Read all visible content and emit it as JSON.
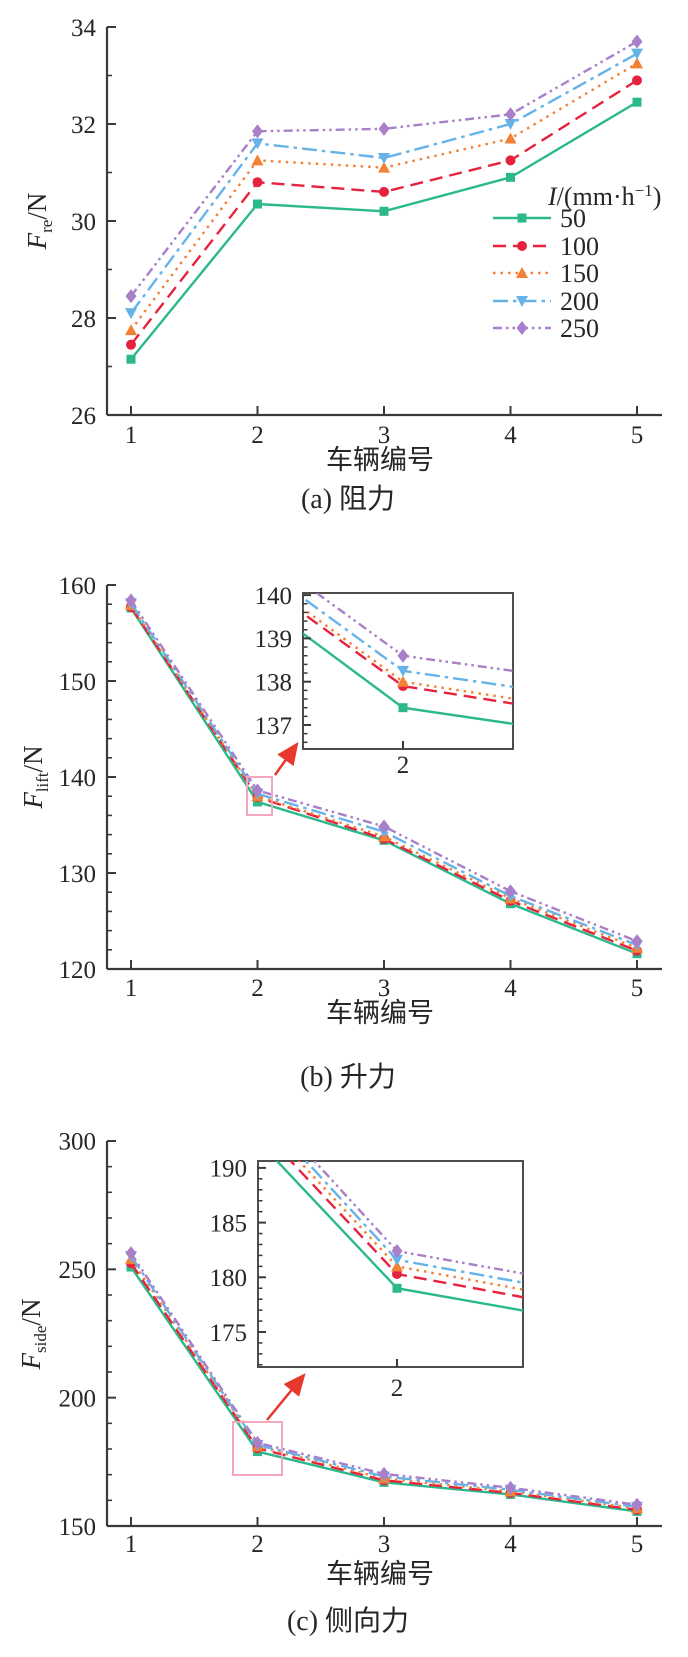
{
  "page": {
    "background": "#ffffff"
  },
  "colors": {
    "axis": "#3a3a3a",
    "text": "#262626",
    "zoom_box": "#f4a7bb",
    "arrow": "#e8372c"
  },
  "series_styles": [
    {
      "label": "50",
      "color": "#2bb98c",
      "marker": "square",
      "line": "solid"
    },
    {
      "label": "100",
      "color": "#e6233f",
      "marker": "circle",
      "line": "dashed"
    },
    {
      "label": "150",
      "color": "#f28133",
      "marker": "triangle-up",
      "line": "dotted"
    },
    {
      "label": "200",
      "color": "#66b3e8",
      "marker": "triangle-down",
      "line": "dash-dot"
    },
    {
      "label": "250",
      "color": "#a97fc9",
      "marker": "diamond",
      "line": "dash-dot-dot"
    }
  ],
  "legend": {
    "title_italic": "I",
    "title_mid": "/(mm·h",
    "title_sup": "−1",
    "title_end": ")"
  },
  "chart_data": [
    {
      "id": "a",
      "type": "line",
      "caption": "(a) 阻力",
      "xlabel": "车辆编号",
      "ylabel_base": "F",
      "ylabel_sub": "re",
      "ylabel_rest": "/N",
      "x": [
        1,
        2,
        3,
        4,
        5
      ],
      "xticks": [
        "1",
        "2",
        "3",
        "4",
        "5"
      ],
      "ylim": [
        26,
        34
      ],
      "yticks": [
        26,
        28,
        30,
        32,
        34
      ],
      "yminor_step": 1,
      "grid": false,
      "legend_position": "right-middle",
      "series": [
        {
          "name": "50",
          "values": [
            27.15,
            30.35,
            30.2,
            30.9,
            32.45
          ]
        },
        {
          "name": "100",
          "values": [
            27.45,
            30.8,
            30.6,
            31.25,
            32.9
          ]
        },
        {
          "name": "150",
          "values": [
            27.75,
            31.25,
            31.1,
            31.7,
            33.25
          ]
        },
        {
          "name": "200",
          "values": [
            28.1,
            31.6,
            31.3,
            32.0,
            33.45
          ]
        },
        {
          "name": "250",
          "values": [
            28.45,
            31.85,
            31.9,
            32.2,
            33.7
          ]
        }
      ]
    },
    {
      "id": "b",
      "type": "line",
      "caption": "(b) 升力",
      "xlabel": "车辆编号",
      "ylabel_base": "F",
      "ylabel_sub": "lift",
      "ylabel_rest": "/N",
      "x": [
        1,
        2,
        3,
        4,
        5
      ],
      "xticks": [
        "1",
        "2",
        "3",
        "4",
        "5"
      ],
      "ylim": [
        120,
        160
      ],
      "yticks": [
        120,
        130,
        140,
        150,
        160
      ],
      "yminor_step": 2,
      "grid": false,
      "series": [
        {
          "name": "50",
          "values": [
            157.6,
            137.4,
            133.4,
            126.8,
            121.6
          ]
        },
        {
          "name": "100",
          "values": [
            157.7,
            137.9,
            133.55,
            127.1,
            121.9
          ]
        },
        {
          "name": "150",
          "values": [
            157.9,
            138.0,
            133.8,
            127.35,
            122.2
          ]
        },
        {
          "name": "200",
          "values": [
            158.1,
            138.25,
            134.3,
            127.6,
            122.5
          ]
        },
        {
          "name": "250",
          "values": [
            158.4,
            138.6,
            134.85,
            128.1,
            122.9
          ]
        }
      ],
      "inset": {
        "yticks": [
          137,
          138,
          139,
          140
        ],
        "yminor_step": 0.2,
        "xtick": "2"
      }
    },
    {
      "id": "c",
      "type": "line",
      "caption": "(c) 侧向力",
      "xlabel": "车辆编号",
      "ylabel_base": "F",
      "ylabel_sub": "side",
      "ylabel_rest": "/N",
      "x": [
        1,
        2,
        3,
        4,
        5
      ],
      "xticks": [
        "1",
        "2",
        "3",
        "4",
        "5"
      ],
      "ylim": [
        150,
        300
      ],
      "yticks": [
        150,
        200,
        250,
        300
      ],
      "yminor_step": 10,
      "grid": false,
      "series": [
        {
          "name": "50",
          "values": [
            250.9,
            179.0,
            167.0,
            162.3,
            155.7
          ]
        },
        {
          "name": "100",
          "values": [
            252.4,
            180.3,
            167.8,
            162.9,
            156.3
          ]
        },
        {
          "name": "150",
          "values": [
            254.0,
            181.0,
            168.5,
            163.5,
            156.9
          ]
        },
        {
          "name": "200",
          "values": [
            255.2,
            181.6,
            169.3,
            164.1,
            157.5
          ]
        },
        {
          "name": "250",
          "values": [
            256.3,
            182.4,
            170.3,
            164.9,
            158.3
          ]
        }
      ],
      "inset": {
        "yticks": [
          175,
          180,
          185,
          190
        ],
        "yminor_step": 1,
        "xtick": "2"
      }
    }
  ]
}
